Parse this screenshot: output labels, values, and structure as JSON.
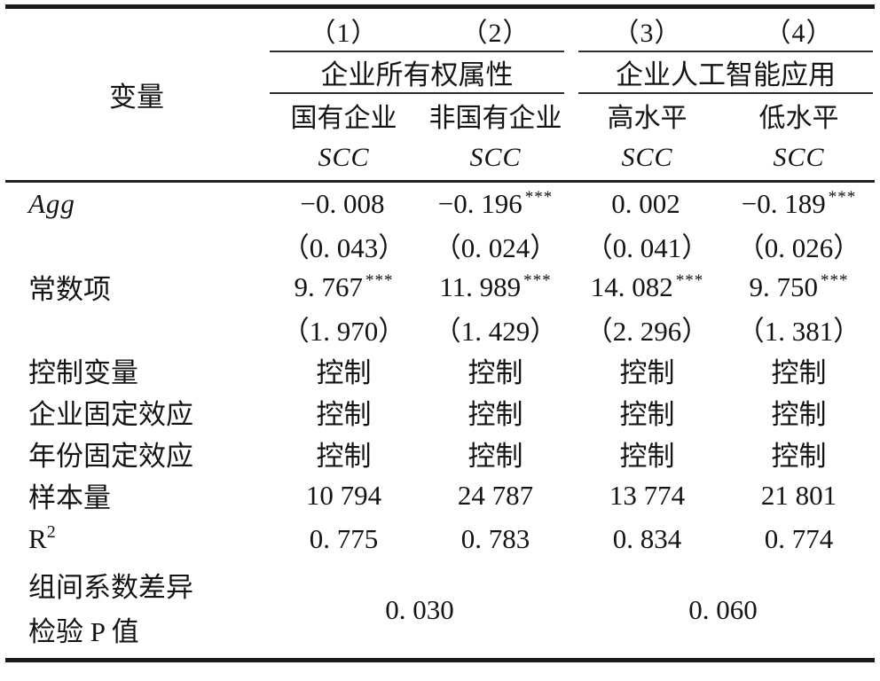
{
  "table": {
    "header": {
      "variable_label": "变量",
      "model_numbers": [
        "（1）",
        "（2）",
        "（3）",
        "（4）"
      ],
      "groups": [
        {
          "title": "企业所有权属性",
          "subcolumns": [
            "国有企业",
            "非国有企业"
          ]
        },
        {
          "title": "企业人工智能应用",
          "subcolumns": [
            "高水平",
            "低水平"
          ]
        }
      ],
      "dep_var_row": [
        "SCC",
        "SCC",
        "SCC",
        "SCC"
      ]
    },
    "rows": [
      {
        "label": "Agg",
        "cells": [
          "−0. 008",
          "−0. 196",
          "0. 002",
          "−0. 189"
        ],
        "stars": [
          "",
          "***",
          "",
          "***"
        ]
      },
      {
        "label": "",
        "cells": [
          "（0. 043）",
          "（0. 024）",
          "（0. 041）",
          "（0. 026）"
        ],
        "stars": [
          "",
          "",
          "",
          ""
        ]
      },
      {
        "label": "常数项",
        "cells": [
          "9. 767",
          "11. 989",
          "14. 082",
          "9. 750"
        ],
        "stars": [
          "***",
          "***",
          "***",
          "***"
        ]
      },
      {
        "label": "",
        "cells": [
          "（1. 970）",
          "（1. 429）",
          "（2. 296）",
          "（1. 381）"
        ],
        "stars": [
          "",
          "",
          "",
          ""
        ]
      },
      {
        "label": "控制变量",
        "cells": [
          "控制",
          "控制",
          "控制",
          "控制"
        ],
        "stars": [
          "",
          "",
          "",
          ""
        ]
      },
      {
        "label": "企业固定效应",
        "cells": [
          "控制",
          "控制",
          "控制",
          "控制"
        ],
        "stars": [
          "",
          "",
          "",
          ""
        ]
      },
      {
        "label": "年份固定效应",
        "cells": [
          "控制",
          "控制",
          "控制",
          "控制"
        ],
        "stars": [
          "",
          "",
          "",
          ""
        ]
      },
      {
        "label": "样本量",
        "cells": [
          "10 794",
          "24 787",
          "13 774",
          "21 801"
        ],
        "stars": [
          "",
          "",
          "",
          ""
        ]
      },
      {
        "label": "R",
        "label_sup": "2",
        "cells": [
          "0. 775",
          "0. 783",
          "0. 834",
          "0. 774"
        ],
        "stars": [
          "",
          "",
          "",
          ""
        ]
      }
    ],
    "pvalue_row": {
      "label_line1": "组间系数差异",
      "label_line2": "检验 P 值",
      "values": [
        "0. 030",
        "0. 060"
      ]
    }
  }
}
